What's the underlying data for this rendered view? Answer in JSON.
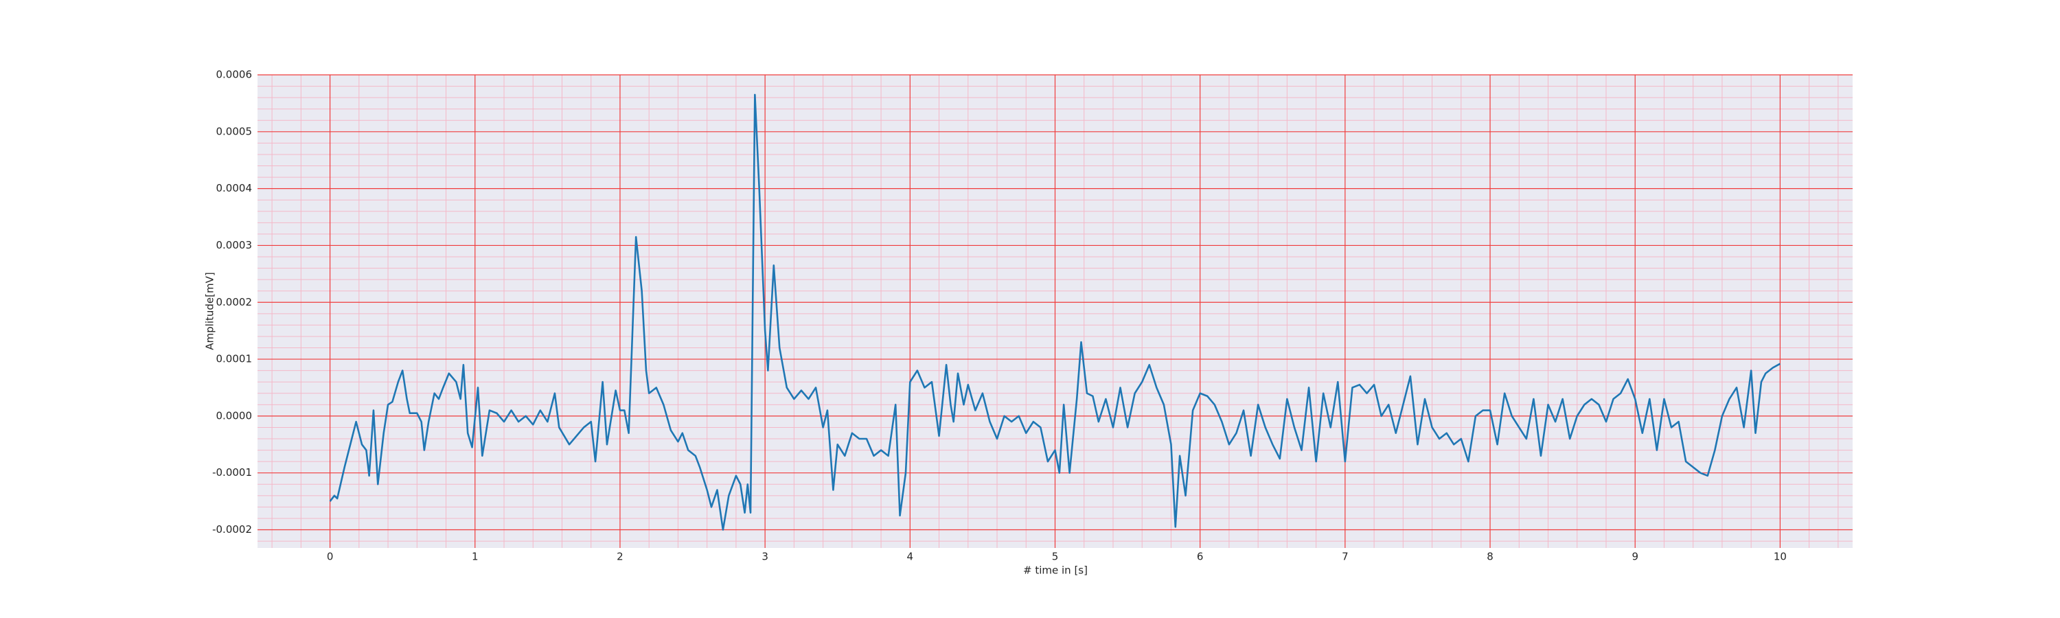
{
  "chart_data": {
    "type": "line",
    "xlabel": "# time in [s]",
    "ylabel": "Amplitude[mV]",
    "color": "#1f77b4",
    "grid": true,
    "minor_grid": 5,
    "xlim": [
      -0.5,
      10.5
    ],
    "ylim": [
      -0.000232,
      0.0006
    ],
    "xticks": [
      0,
      1,
      2,
      3,
      4,
      5,
      6,
      7,
      8,
      9,
      10
    ],
    "yticks": [
      -0.0002,
      -0.0001,
      {
        "value": 0,
        "label": "0.0000"
      },
      0.0001,
      0.0002,
      0.0003,
      0.0004,
      0.0005,
      0.0006
    ],
    "x": [
      0,
      0.03,
      0.05,
      0.1,
      0.15,
      0.18,
      0.22,
      0.25,
      0.27,
      0.3,
      0.33,
      0.37,
      0.4,
      0.43,
      0.47,
      0.5,
      0.53,
      0.55,
      0.6,
      0.63,
      0.65,
      0.68,
      0.72,
      0.75,
      0.78,
      0.82,
      0.87,
      0.9,
      0.92,
      0.95,
      0.98,
      1.02,
      1.05,
      1.1,
      1.15,
      1.2,
      1.25,
      1.3,
      1.35,
      1.4,
      1.45,
      1.5,
      1.55,
      1.58,
      1.65,
      1.75,
      1.8,
      1.83,
      1.88,
      1.91,
      1.97,
      2.0,
      2.03,
      2.06,
      2.11,
      2.15,
      2.18,
      2.2,
      2.25,
      2.3,
      2.35,
      2.4,
      2.43,
      2.47,
      2.52,
      2.55,
      2.6,
      2.63,
      2.67,
      2.71,
      2.75,
      2.8,
      2.83,
      2.86,
      2.88,
      2.9,
      2.93,
      2.96,
      3.0,
      3.02,
      3.06,
      3.1,
      3.15,
      3.2,
      3.25,
      3.3,
      3.35,
      3.4,
      3.43,
      3.47,
      3.5,
      3.55,
      3.6,
      3.65,
      3.7,
      3.75,
      3.8,
      3.85,
      3.9,
      3.93,
      3.97,
      4.0,
      4.05,
      4.1,
      4.15,
      4.2,
      4.25,
      4.28,
      4.3,
      4.33,
      4.37,
      4.4,
      4.45,
      4.5,
      4.55,
      4.6,
      4.65,
      4.7,
      4.75,
      4.8,
      4.85,
      4.9,
      4.95,
      5.0,
      5.03,
      5.06,
      5.1,
      5.15,
      5.18,
      5.22,
      5.26,
      5.3,
      5.35,
      5.4,
      5.45,
      5.5,
      5.55,
      5.6,
      5.65,
      5.7,
      5.75,
      5.8,
      5.83,
      5.86,
      5.9,
      5.95,
      6.0,
      6.05,
      6.1,
      6.15,
      6.2,
      6.25,
      6.3,
      6.35,
      6.4,
      6.45,
      6.5,
      6.55,
      6.6,
      6.65,
      6.7,
      6.75,
      6.8,
      6.85,
      6.9,
      6.95,
      7.0,
      7.05,
      7.1,
      7.15,
      7.2,
      7.25,
      7.3,
      7.35,
      7.4,
      7.45,
      7.5,
      7.55,
      7.6,
      7.65,
      7.7,
      7.75,
      7.8,
      7.85,
      7.9,
      7.95,
      8.0,
      8.05,
      8.1,
      8.15,
      8.2,
      8.25,
      8.3,
      8.35,
      8.4,
      8.45,
      8.5,
      8.55,
      8.6,
      8.65,
      8.7,
      8.75,
      8.8,
      8.85,
      8.9,
      8.95,
      9.0,
      9.05,
      9.1,
      9.15,
      9.2,
      9.25,
      9.3,
      9.35,
      9.4,
      9.45,
      9.5,
      9.55,
      9.6,
      9.65,
      9.7,
      9.75,
      9.8,
      9.83,
      9.87,
      9.9,
      9.95,
      10.0
    ],
    "values": [
      -0.00015,
      -0.00014,
      -0.000145,
      -9e-05,
      -4e-05,
      -1e-05,
      -5e-05,
      -6e-05,
      -0.000105,
      1e-05,
      -0.00012,
      -3e-05,
      2e-05,
      2.5e-05,
      6e-05,
      8e-05,
      3e-05,
      5e-06,
      5e-06,
      -1e-05,
      -6e-05,
      -1e-05,
      4e-05,
      3e-05,
      5e-05,
      7.5e-05,
      6e-05,
      3e-05,
      9e-05,
      -3e-05,
      -5.5e-05,
      5e-05,
      -7e-05,
      1e-05,
      5e-06,
      -1e-05,
      1e-05,
      -1e-05,
      0,
      -1.5e-05,
      1e-05,
      -1e-05,
      4e-05,
      -2e-05,
      -5e-05,
      -2e-05,
      -1e-05,
      -8e-05,
      6e-05,
      -5e-05,
      4.5e-05,
      1e-05,
      1e-05,
      -3e-05,
      0.000315,
      0.00022,
      8e-05,
      4e-05,
      5e-05,
      2e-05,
      -2.5e-05,
      -4.5e-05,
      -3e-05,
      -6e-05,
      -7e-05,
      -9e-05,
      -0.00013,
      -0.00016,
      -0.00013,
      -0.0002,
      -0.00014,
      -0.000105,
      -0.00012,
      -0.00017,
      -0.00012,
      -0.00017,
      0.000565,
      0.0004,
      0.00015,
      8e-05,
      0.000265,
      0.00012,
      5e-05,
      3e-05,
      4.5e-05,
      3e-05,
      5e-05,
      -2e-05,
      1e-05,
      -0.00013,
      -5e-05,
      -7e-05,
      -3e-05,
      -4e-05,
      -4e-05,
      -7e-05,
      -6e-05,
      -7e-05,
      2e-05,
      -0.000175,
      -0.0001,
      6e-05,
      8e-05,
      5e-05,
      6e-05,
      -3.5e-05,
      9e-05,
      2e-05,
      -1e-05,
      7.5e-05,
      2e-05,
      5.5e-05,
      1e-05,
      4e-05,
      -1e-05,
      -4e-05,
      0,
      -1e-05,
      0,
      -3e-05,
      -1e-05,
      -2e-05,
      -8e-05,
      -6e-05,
      -0.0001,
      2e-05,
      -0.0001,
      3e-05,
      0.00013,
      4e-05,
      3.5e-05,
      -1e-05,
      3e-05,
      -2e-05,
      5e-05,
      -2e-05,
      4e-05,
      6e-05,
      9e-05,
      5e-05,
      2e-05,
      -5e-05,
      -0.000195,
      -7e-05,
      -0.00014,
      1e-05,
      4e-05,
      3.5e-05,
      2e-05,
      -1e-05,
      -5e-05,
      -3e-05,
      1e-05,
      -7e-05,
      2e-05,
      -2e-05,
      -5e-05,
      -7.5e-05,
      3e-05,
      -2e-05,
      -6e-05,
      5e-05,
      -8e-05,
      4e-05,
      -2e-05,
      6e-05,
      -8e-05,
      5e-05,
      5.5e-05,
      4e-05,
      5.5e-05,
      0,
      2e-05,
      -3e-05,
      2e-05,
      7e-05,
      -5e-05,
      3e-05,
      -2e-05,
      -4e-05,
      -3e-05,
      -5e-05,
      -4e-05,
      -8e-05,
      0,
      1e-05,
      1e-05,
      -5e-05,
      4e-05,
      0,
      -2e-05,
      -4e-05,
      3e-05,
      -7e-05,
      2e-05,
      -1e-05,
      3e-05,
      -4e-05,
      0,
      2e-05,
      3e-05,
      2e-05,
      -1e-05,
      3e-05,
      4e-05,
      6.5e-05,
      3e-05,
      -3e-05,
      3e-05,
      -6e-05,
      3e-05,
      -2e-05,
      -1e-05,
      -8e-05,
      -9e-05,
      -0.0001,
      -0.000105,
      -6e-05,
      0,
      3e-05,
      5e-05,
      -2e-05,
      8e-05,
      -3e-05,
      6e-05,
      7.5e-05,
      8.5e-05,
      9.2e-05
    ]
  }
}
